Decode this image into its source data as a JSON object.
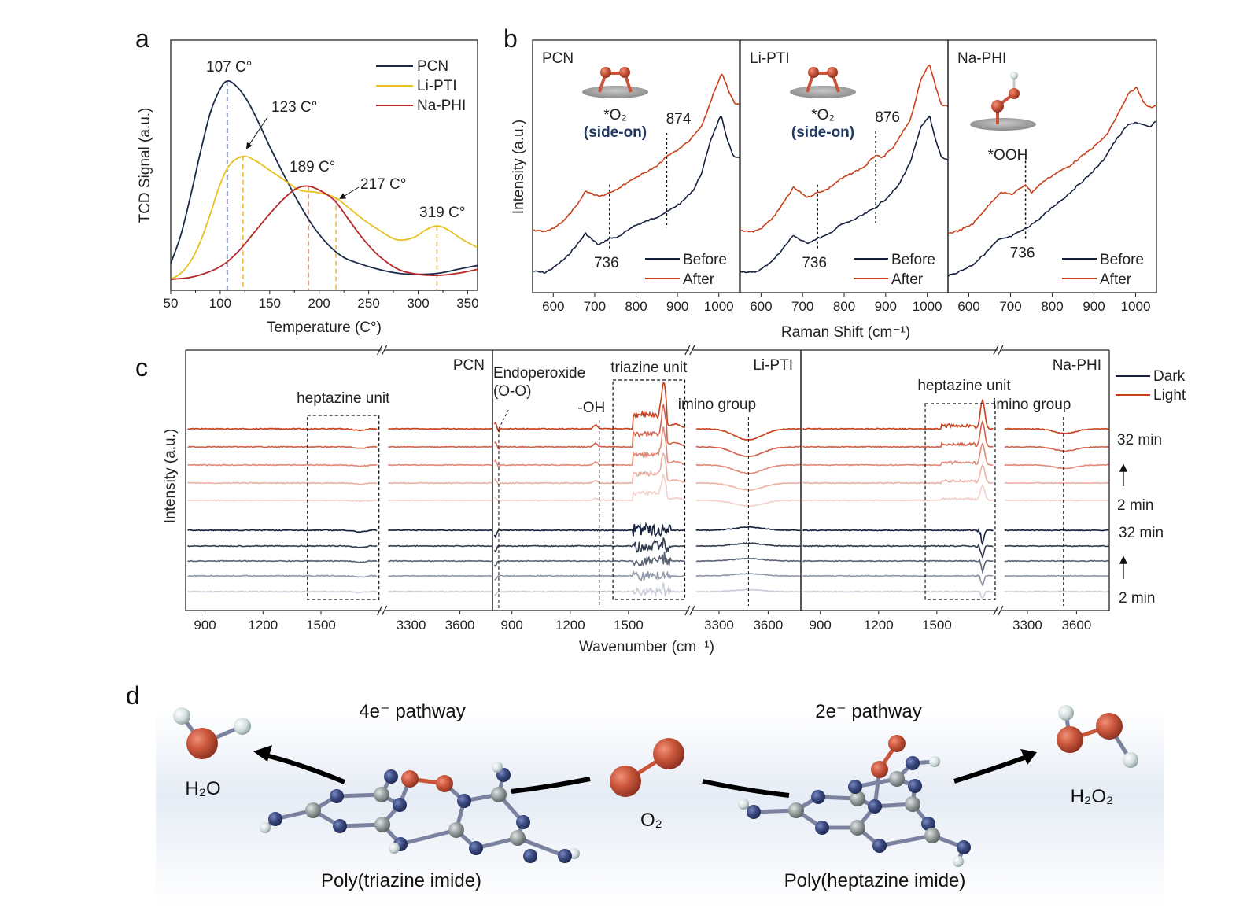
{
  "panels": {
    "a": "a",
    "b": "b",
    "c": "c",
    "d": "d"
  },
  "chart_data": [
    {
      "id": "a",
      "type": "line",
      "title": "",
      "xlabel": "Temperature (C°)",
      "ylabel": "TCD Signal (a.u.)",
      "xlim": [
        50,
        360
      ],
      "xticks": [
        50,
        100,
        150,
        200,
        250,
        300,
        350
      ],
      "legend_position": "top-right",
      "series": [
        {
          "name": "PCN",
          "color": "#1b2a4a",
          "x": [
            50,
            60,
            70,
            80,
            90,
            100,
            107,
            115,
            125,
            135,
            150,
            165,
            180,
            195,
            210,
            225,
            240,
            260,
            280,
            300,
            320,
            340,
            360
          ],
          "y": [
            0.08,
            0.22,
            0.42,
            0.64,
            0.84,
            0.96,
            1.0,
            0.98,
            0.92,
            0.83,
            0.67,
            0.52,
            0.38,
            0.26,
            0.17,
            0.11,
            0.08,
            0.05,
            0.03,
            0.025,
            0.03,
            0.05,
            0.07
          ]
        },
        {
          "name": "Li-PTI",
          "color": "#e8c020",
          "x": [
            50,
            60,
            70,
            80,
            90,
            100,
            110,
            123,
            135,
            150,
            165,
            180,
            195,
            205,
            217,
            230,
            245,
            260,
            278,
            295,
            308,
            319,
            330,
            345,
            360
          ],
          "y": [
            0.0,
            0.03,
            0.09,
            0.19,
            0.33,
            0.48,
            0.58,
            0.62,
            0.6,
            0.55,
            0.5,
            0.45,
            0.44,
            0.43,
            0.41,
            0.36,
            0.3,
            0.25,
            0.2,
            0.21,
            0.25,
            0.27,
            0.25,
            0.2,
            0.16
          ]
        },
        {
          "name": "Na-PHI",
          "color": "#b5282a",
          "x": [
            50,
            70,
            90,
            105,
            120,
            135,
            150,
            165,
            178,
            189,
            200,
            215,
            230,
            245,
            260,
            280,
            300,
            320,
            340,
            360
          ],
          "y": [
            0.0,
            0.01,
            0.04,
            0.08,
            0.15,
            0.24,
            0.33,
            0.41,
            0.46,
            0.47,
            0.45,
            0.4,
            0.3,
            0.2,
            0.12,
            0.05,
            0.025,
            0.02,
            0.03,
            0.05
          ]
        }
      ],
      "annotations": [
        {
          "text": "107 C°",
          "x": 107,
          "series": "PCN",
          "line_color": "#4a5a78"
        },
        {
          "text": "123 C°",
          "x": 123,
          "series": "Li-PTI",
          "line_color": "#f0b840",
          "arrow": true
        },
        {
          "text": "189 C°",
          "x": 189,
          "series": "Na-PHI",
          "line_color": "#c86a50"
        },
        {
          "text": "217 C°",
          "x": 217,
          "series": "Li-PTI",
          "line_color": "#f0b840",
          "arrow": true
        },
        {
          "text": "319 C°",
          "x": 319,
          "series": "Li-PTI",
          "line_color": "#f0b840"
        }
      ]
    },
    {
      "id": "b",
      "type": "line",
      "xlabel": "Raman Shift (cm⁻¹)",
      "ylabel": "Intensity (a.u.)",
      "xlim": [
        550,
        1050
      ],
      "xticks": [
        600,
        700,
        800,
        900,
        1000
      ],
      "legend": [
        "Before",
        "After"
      ],
      "legend_colors": {
        "Before": "#14213d",
        "After": "#c8401a"
      },
      "legend_position": "bottom-right",
      "subpanels": [
        {
          "name": "PCN",
          "adsorbate": "*O₂",
          "adsorbate_note": "(side-on)",
          "peaks": [
            {
              "label": "736",
              "x": 736
            },
            {
              "label": "874",
              "x": 874
            }
          ],
          "before": {
            "x": [
              550,
              580,
              600,
              630,
              660,
              678,
              695,
              710,
              736,
              760,
              790,
              820,
              850,
              880,
              910,
              940,
              960,
              980,
              1005,
              1020,
              1035,
              1050
            ],
            "y": [
              0.05,
              0.04,
              0.07,
              0.13,
              0.22,
              0.28,
              0.24,
              0.21,
              0.25,
              0.26,
              0.32,
              0.35,
              0.38,
              0.42,
              0.47,
              0.55,
              0.66,
              0.85,
              1.0,
              0.86,
              0.75,
              0.74
            ]
          },
          "after": {
            "x": [
              550,
              580,
              600,
              630,
              660,
              678,
              695,
              715,
              736,
              760,
              790,
              820,
              850,
              874,
              900,
              930,
              960,
              985,
              1008,
              1025,
              1040,
              1050
            ],
            "y": [
              0.3,
              0.29,
              0.31,
              0.37,
              0.46,
              0.54,
              0.52,
              0.51,
              0.53,
              0.56,
              0.61,
              0.65,
              0.69,
              0.75,
              0.79,
              0.85,
              0.94,
              1.12,
              1.26,
              1.14,
              1.07,
              1.07
            ]
          }
        },
        {
          "name": "Li-PTI",
          "adsorbate": "*O₂",
          "adsorbate_note": "(side-on)",
          "peaks": [
            {
              "label": "736",
              "x": 736
            },
            {
              "label": "876",
              "x": 876
            }
          ],
          "before": {
            "x": [
              550,
              580,
              600,
              630,
              660,
              678,
              695,
              710,
              736,
              760,
              790,
              820,
              850,
              876,
              900,
              930,
              960,
              985,
              1005,
              1020,
              1035,
              1050
            ],
            "y": [
              0.05,
              0.04,
              0.06,
              0.12,
              0.21,
              0.27,
              0.24,
              0.22,
              0.25,
              0.27,
              0.33,
              0.36,
              0.4,
              0.44,
              0.49,
              0.57,
              0.72,
              0.93,
              1.0,
              0.85,
              0.74,
              0.73
            ]
          },
          "after": {
            "x": [
              550,
              580,
              600,
              630,
              660,
              678,
              695,
              712,
              736,
              760,
              790,
              820,
              850,
              876,
              890,
              920,
              960,
              985,
              1005,
              1020,
              1035,
              1050
            ],
            "y": [
              0.3,
              0.29,
              0.31,
              0.38,
              0.49,
              0.56,
              0.53,
              0.5,
              0.53,
              0.55,
              0.61,
              0.65,
              0.69,
              0.76,
              0.74,
              0.81,
              0.98,
              1.22,
              1.32,
              1.18,
              1.06,
              1.06
            ]
          }
        },
        {
          "name": "Na-PHI",
          "adsorbate": "*OOH",
          "adsorbate_note": "",
          "peaks": [
            {
              "label": "736",
              "x": 736
            }
          ],
          "before": {
            "x": [
              550,
              580,
              610,
              640,
              670,
              700,
              736,
              770,
              800,
              830,
              860,
              890,
              920,
              950,
              980,
              1000,
              1020,
              1035,
              1050
            ],
            "y": [
              0.02,
              0.05,
              0.09,
              0.16,
              0.24,
              0.26,
              0.31,
              0.37,
              0.44,
              0.5,
              0.57,
              0.64,
              0.72,
              0.84,
              0.94,
              0.96,
              0.94,
              0.93,
              0.97
            ]
          },
          "after": {
            "x": [
              550,
              580,
              610,
              640,
              675,
              705,
              736,
              750,
              780,
              810,
              840,
              870,
              900,
              930,
              960,
              985,
              1002,
              1020,
              1035,
              1050
            ],
            "y": [
              0.28,
              0.3,
              0.34,
              0.43,
              0.53,
              0.52,
              0.58,
              0.53,
              0.6,
              0.65,
              0.69,
              0.75,
              0.81,
              0.88,
              1.02,
              1.14,
              1.17,
              1.08,
              1.05,
              1.06
            ]
          }
        }
      ]
    },
    {
      "id": "c",
      "type": "line",
      "xlabel": "Wavenumber (cm⁻¹)",
      "ylabel": "Intensity (a.u.)",
      "axis_break": true,
      "x_segments": [
        [
          800,
          1800
        ],
        [
          3150,
          3800
        ]
      ],
      "xticks": [
        900,
        1200,
        1500,
        3300,
        3600
      ],
      "legend": [
        "Dark",
        "Light"
      ],
      "legend_colors": {
        "Dark": "#14213d",
        "Light": "#c8401a"
      },
      "legend_position": "right",
      "time_labels": {
        "light_top": "32 min",
        "light_bottom": "2 min",
        "dark_top": "32 min",
        "dark_bottom": "2 min"
      },
      "light_colors": [
        "#c8401a",
        "#d4604a",
        "#e08a78",
        "#ebb0a5",
        "#f3d0ca"
      ],
      "dark_colors": [
        "#14213d",
        "#343c50",
        "#5c6478",
        "#9098a8",
        "#c8ccd6"
      ],
      "subpanels": [
        {
          "name": "PCN",
          "annotations": [
            {
              "text": "heptazine unit",
              "box": [
                1430,
                1800
              ]
            }
          ],
          "light_feature": "flat",
          "dark_feature": "flat"
        },
        {
          "name": "Li-PTI",
          "annotations": [
            {
              "text": "Endoperoxide",
              "text2": "(O-O)",
              "x": 820
            },
            {
              "text": "-OH",
              "x": 1350
            },
            {
              "text": "triazine unit",
              "box": [
                1420,
                1790
              ]
            },
            {
              "text": "imino group",
              "x": 3480
            }
          ],
          "light_feature": "triazine-peak",
          "dark_feature": "triazine-noise"
        },
        {
          "name": "Na-PHI",
          "annotations": [
            {
              "text": "heptazine unit",
              "box": [
                1440,
                1800
              ]
            },
            {
              "text": "imino group",
              "x": 3520
            }
          ],
          "light_feature": "heptazine-peak",
          "dark_feature": "heptazine-dip"
        }
      ]
    }
  ],
  "panel_d": {
    "left_pathway": "4e⁻ pathway",
    "right_pathway": "2e⁻ pathway",
    "left_product": "H₂O",
    "right_product": "H₂O₂",
    "reactant": "O₂",
    "left_catalyst": "Poly(triazine imide)",
    "right_catalyst": "Poly(heptazine imide)",
    "colors": {
      "oxygen": "#c8553a",
      "nitrogen": "#3a4a80",
      "carbon": "#9aa0a0",
      "hydrogen": "#d8e4e4"
    }
  }
}
